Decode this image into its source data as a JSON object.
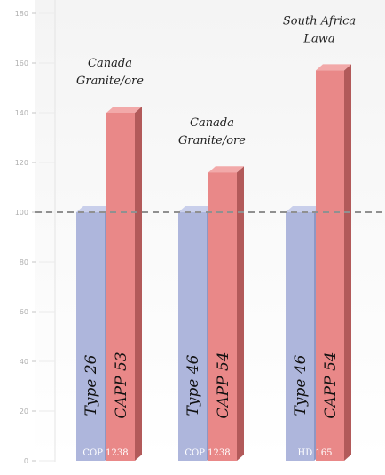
{
  "chart_data": {
    "type": "bar",
    "title": "",
    "xlabel": "",
    "ylabel": "",
    "ylim": [
      0,
      180
    ],
    "yticks": [
      0,
      20,
      40,
      60,
      80,
      100,
      120,
      140,
      160,
      180
    ],
    "grid": true,
    "reference_line": 100,
    "colors": {
      "baseline": "#aeb6dc",
      "variant": "#e98888",
      "reference_line": "#909090"
    },
    "groups": [
      {
        "category": "COP 1238",
        "bar_labels": [
          "Type 26",
          "CAPP 53"
        ],
        "values": [
          100,
          140
        ],
        "annotation": [
          "Canada",
          "Granite/ore"
        ]
      },
      {
        "category": "COP 1238",
        "bar_labels": [
          "Type 46",
          "CAPP 54"
        ],
        "values": [
          100,
          116
        ],
        "annotation": [
          "Canada",
          "Granite/ore"
        ]
      },
      {
        "category": "HD 165",
        "bar_labels": [
          "Type 46",
          "CAPP 54"
        ],
        "values": [
          100,
          157
        ],
        "annotation": [
          "South Africa",
          "Lawa"
        ]
      }
    ]
  }
}
